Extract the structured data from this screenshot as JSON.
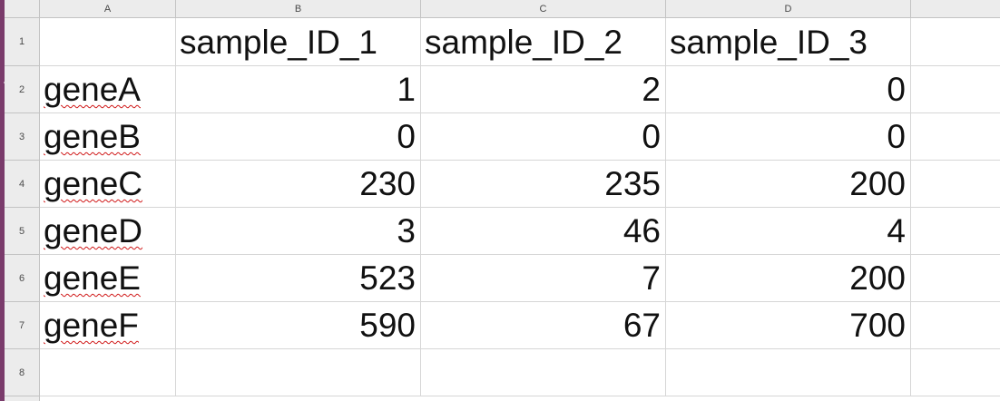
{
  "sheet": {
    "column_headers": [
      "A",
      "B",
      "C",
      "D"
    ],
    "row_headers": [
      "1",
      "2",
      "3",
      "4",
      "5",
      "6",
      "7",
      "8"
    ],
    "rows": [
      [
        "",
        "sample_ID_1",
        "sample_ID_2",
        "sample_ID_3"
      ],
      [
        "geneA",
        "1",
        "2",
        "0"
      ],
      [
        "geneB",
        "0",
        "0",
        "0"
      ],
      [
        "geneC",
        "230",
        "235",
        "200"
      ],
      [
        "geneD",
        "3",
        "46",
        "4"
      ],
      [
        "geneE",
        "523",
        "7",
        "200"
      ],
      [
        "geneF",
        "590",
        "67",
        "700"
      ],
      [
        "",
        "",
        "",
        ""
      ]
    ]
  },
  "colors": {
    "accent_strip": "#7a3b6b",
    "header_background": "#ececec",
    "spellcheck_underline": "#d01818"
  }
}
